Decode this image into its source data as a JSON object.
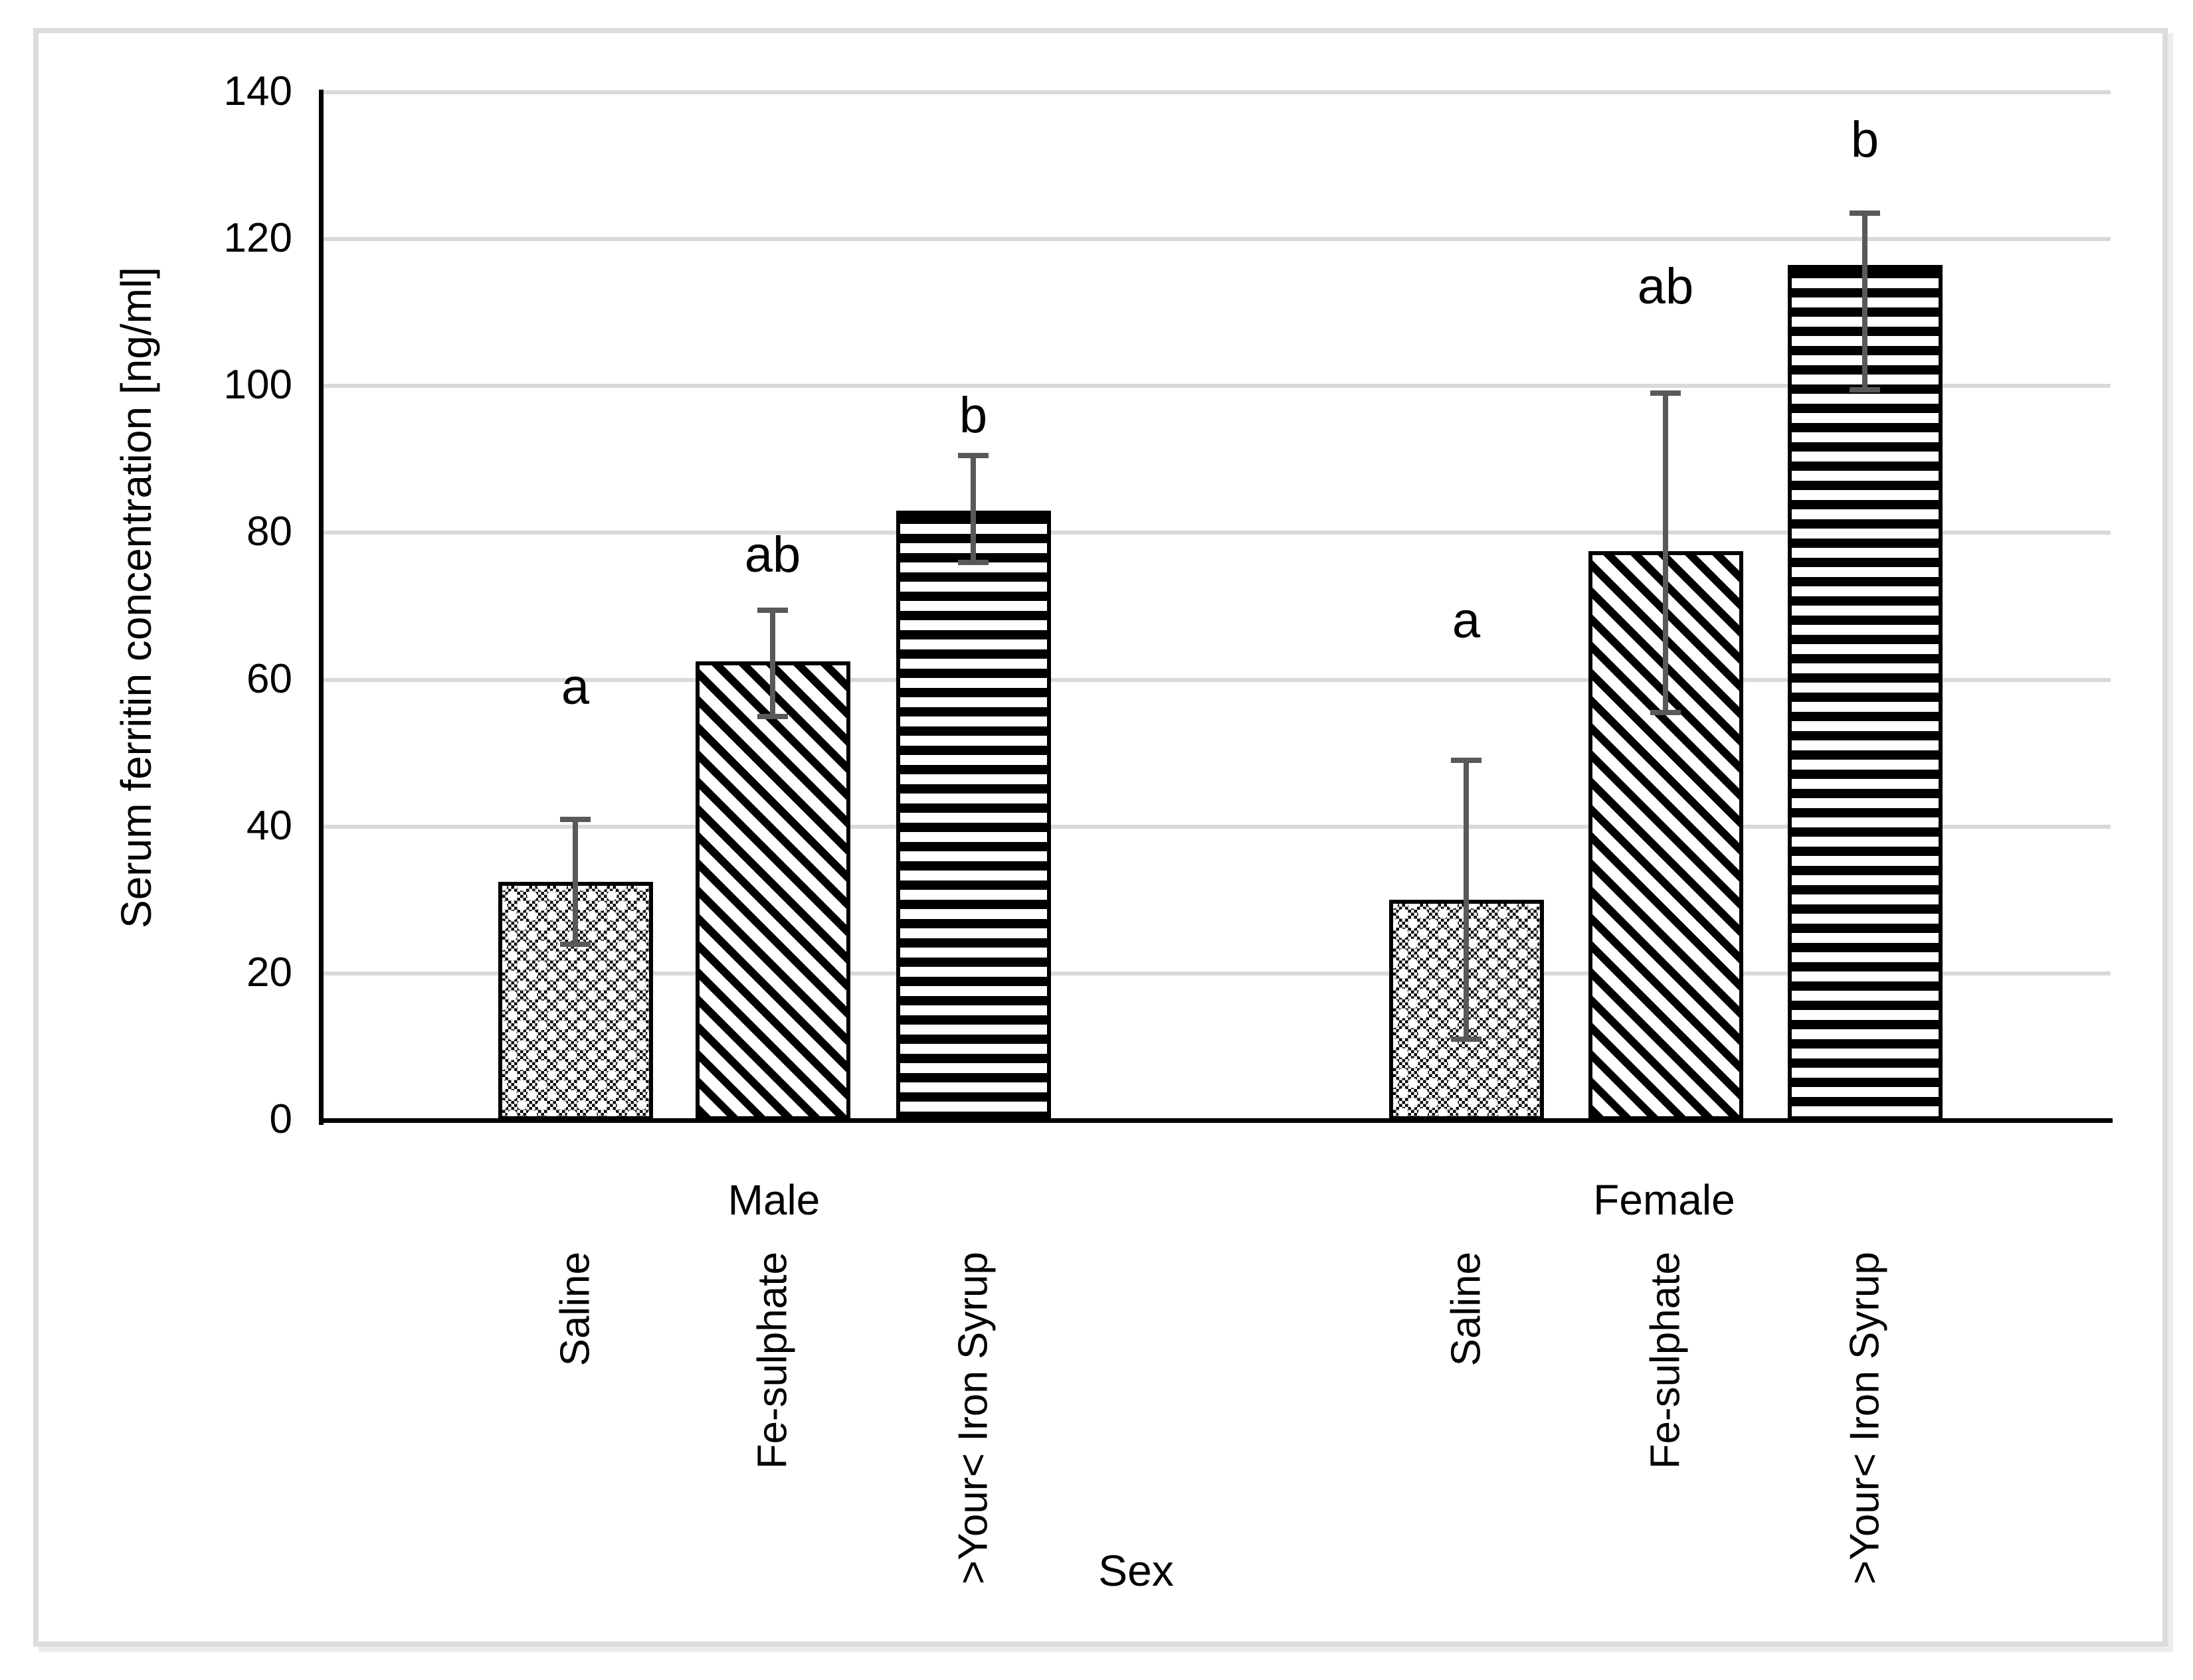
{
  "chart_data": {
    "type": "bar",
    "title": "",
    "xlabel": "Sex",
    "ylabel": "Serum ferritin concentration [ng/ml]",
    "ylim": [
      0,
      140
    ],
    "yticks": [
      0,
      20,
      40,
      60,
      80,
      100,
      120,
      140
    ],
    "grid": true,
    "legend_position": "none",
    "gridline_color": "#d9d9d9",
    "axis_color": "#000000",
    "error_bar_color": "#595959",
    "frame_border_color": "#dcdcdc",
    "groups": [
      {
        "label": "Male",
        "bars": [
          {
            "category": "Saline",
            "pattern": "checker",
            "value": 32.5,
            "err_low": 24,
            "err_high": 41,
            "sig": "a",
            "sig_y": 59
          },
          {
            "category": "Fe-sulphate",
            "pattern": "diagonal",
            "value": 62.5,
            "err_low": 55,
            "err_high": 69.5,
            "sig": "ab",
            "sig_y": 77
          },
          {
            "category": ">Your< Iron Syrup",
            "pattern": "horizontal",
            "value": 83,
            "err_low": 76,
            "err_high": 90.5,
            "sig": "b",
            "sig_y": 96
          }
        ]
      },
      {
        "label": "Female",
        "bars": [
          {
            "category": "Saline",
            "pattern": "checker",
            "value": 30,
            "err_low": 11,
            "err_high": 49,
            "sig": "a",
            "sig_y": 68
          },
          {
            "category": "Fe-sulphate",
            "pattern": "diagonal",
            "value": 77.5,
            "err_low": 55.5,
            "err_high": 99,
            "sig": "ab",
            "sig_y": 113.5
          },
          {
            "category": ">Your< Iron Syrup",
            "pattern": "horizontal",
            "value": 116.5,
            "err_low": 99.5,
            "err_high": 123.5,
            "sig": "b",
            "sig_y": 133.5
          }
        ]
      }
    ]
  }
}
